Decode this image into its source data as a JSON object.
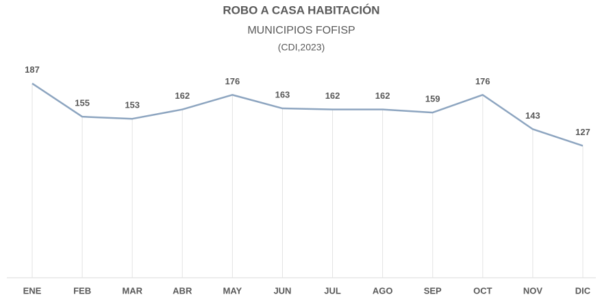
{
  "chart_data": {
    "type": "line",
    "title": "ROBO A CASA HABITACIÓN",
    "subtitle": [
      "MUNICIPIOS FOFISP",
      "(CDI,2023)"
    ],
    "categories": [
      "ENE",
      "FEB",
      "MAR",
      "ABR",
      "MAY",
      "JUN",
      "JUL",
      "AGO",
      "SEP",
      "OCT",
      "NOV",
      "DIC"
    ],
    "series": [
      {
        "name": "Robo a casa habitación",
        "color": "#8da5c0",
        "values": [
          187,
          155,
          153,
          162,
          176,
          163,
          162,
          162,
          159,
          176,
          143,
          127
        ]
      }
    ],
    "ylim": [
      0,
      200
    ],
    "drop_lines": true
  }
}
